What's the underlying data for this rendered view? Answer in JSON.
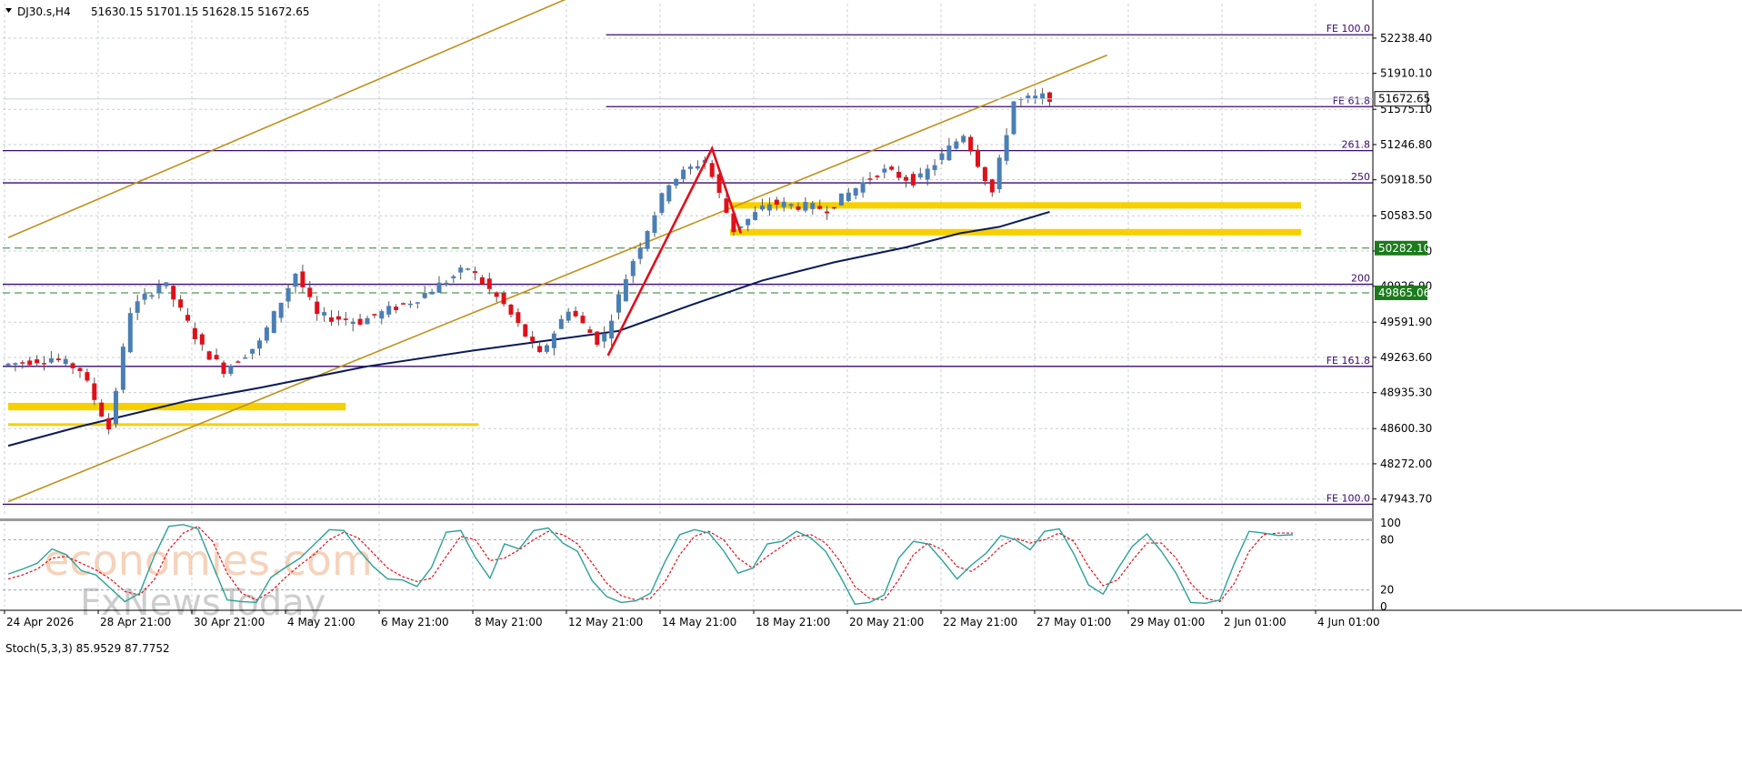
{
  "header": {
    "symbol": "DJ30.s,H4",
    "ohlc": "51630.15 51701.15 51628.15 51672.65",
    "toggle_icon": "triangle-down-icon"
  },
  "indicator": {
    "label": "Stoch(5,3,3) 85.9529 87.7752",
    "levels": [
      "100",
      "80",
      "20",
      "0"
    ]
  },
  "watermark": {
    "line1": "economies.com",
    "line2": "FxNewsToday"
  },
  "colors": {
    "bull": "#4a7fb5",
    "bear": "#e0101a",
    "grid": "#c8d0d8",
    "fib": "#3b0a6b",
    "channel": "#c0901a",
    "ma": "#0a1a5a",
    "zone": "#f7d000",
    "dash_green": "#2e7d32",
    "zigzag": "#e0101a",
    "stoch_main": "#2aa198",
    "stoch_signal": "#e0101a"
  },
  "chart_data": {
    "type": "candlestick",
    "symbol": "DJ30.s",
    "timeframe": "H4",
    "ylim": [
      47780,
      52560
    ],
    "y_ticks": [
      "52238.40",
      "51910.10",
      "51575.10",
      "51246.80",
      "50918.50",
      "50583.50",
      "50255.20",
      "49926.90",
      "49591.90",
      "49263.60",
      "48935.30",
      "48600.30",
      "48272.00",
      "47943.70"
    ],
    "x_ticks": [
      "24 Apr 2026",
      "28 Apr 21:00",
      "30 Apr 21:00",
      "4 May 21:00",
      "6 May 21:00",
      "8 May 21:00",
      "12 May 21:00",
      "14 May 21:00",
      "18 May 21:00",
      "20 May 21:00",
      "22 May 21:00",
      "27 May 01:00",
      "29 May 01:00",
      "2 Jun 01:00",
      "4 Jun 01:00"
    ],
    "current_price": "51672.65",
    "price_labels": [
      {
        "text": "50282.10",
        "value": 50282.1
      },
      {
        "text": "49865.06",
        "value": 49865.06
      }
    ],
    "horizontal_levels": [
      {
        "label": "FE 100.0",
        "value": 52270,
        "from_bar": 168
      },
      {
        "label": "FE 61.8",
        "value": 51600,
        "from_bar": 168
      },
      {
        "label": "261.8",
        "value": 51190,
        "from_bar": 0
      },
      {
        "label": "250",
        "value": 50890,
        "from_bar": 0
      },
      {
        "label": "200",
        "value": 49945,
        "from_bar": 0
      },
      {
        "label": "FE 161.8",
        "value": 49180,
        "from_bar": 0
      },
      {
        "label": "FE 100.0",
        "value": 47895,
        "from_bar": 0
      }
    ],
    "dashed_levels": [
      50282.1,
      49865.06
    ],
    "zones": [
      {
        "from_bar": 0,
        "to_bar": 94,
        "low": 48770,
        "high": 48840
      },
      {
        "from_bar": 0,
        "to_bar": 131,
        "low": 48625,
        "high": 48650
      },
      {
        "from_bar": 201,
        "to_bar": 360,
        "low": 50650,
        "high": 50710
      },
      {
        "from_bar": 201,
        "to_bar": 360,
        "low": 50400,
        "high": 50460
      }
    ],
    "channel_lines": [
      {
        "from": [
          0,
          50380
        ],
        "to": [
          158,
          52640
        ]
      },
      {
        "from": [
          0,
          47920
        ],
        "to": [
          306,
          52080
        ]
      }
    ],
    "zigzag": [
      [
        167,
        49280
      ],
      [
        196,
        51210
      ],
      [
        204,
        50420
      ]
    ],
    "moving_average": [
      [
        0,
        48440
      ],
      [
        20,
        48620
      ],
      [
        50,
        48860
      ],
      [
        70,
        48980
      ],
      [
        100,
        49180
      ],
      [
        130,
        49330
      ],
      [
        150,
        49420
      ],
      [
        170,
        49510
      ],
      [
        190,
        49750
      ],
      [
        210,
        49980
      ],
      [
        230,
        50150
      ],
      [
        250,
        50290
      ],
      [
        265,
        50420
      ],
      [
        276,
        50480
      ],
      [
        290,
        50620
      ]
    ],
    "stochastic": {
      "ylim": [
        0,
        100
      ],
      "main": [
        39,
        45,
        52,
        69,
        62,
        43,
        38,
        22,
        6,
        16,
        60,
        96,
        98,
        93,
        50,
        8,
        6,
        5,
        35,
        47,
        58,
        75,
        92,
        91,
        68,
        48,
        33,
        32,
        24,
        47,
        89,
        91,
        59,
        34,
        75,
        69,
        91,
        94,
        76,
        66,
        31,
        12,
        5,
        7,
        16,
        54,
        86,
        92,
        88,
        67,
        40,
        46,
        75,
        78,
        90,
        82,
        66,
        36,
        3,
        5,
        14,
        58,
        78,
        75,
        55,
        33,
        50,
        64,
        85,
        80,
        68,
        90,
        93,
        63,
        26,
        15,
        45,
        72,
        87,
        66,
        40,
        5,
        4,
        8,
        52,
        90,
        88,
        85,
        86
      ],
      "signal": [
        33,
        38,
        45,
        58,
        60,
        52,
        44,
        33,
        18,
        14,
        32,
        68,
        88,
        96,
        78,
        40,
        16,
        8,
        18,
        35,
        50,
        63,
        80,
        89,
        82,
        64,
        46,
        36,
        30,
        34,
        60,
        84,
        80,
        55,
        58,
        68,
        80,
        90,
        86,
        75,
        52,
        28,
        13,
        8,
        10,
        30,
        62,
        84,
        90,
        80,
        58,
        46,
        60,
        72,
        84,
        86,
        76,
        54,
        24,
        10,
        8,
        32,
        62,
        76,
        68,
        48,
        42,
        55,
        72,
        82,
        76,
        80,
        88,
        78,
        48,
        25,
        32,
        55,
        76,
        76,
        58,
        28,
        10,
        6,
        28,
        66,
        86,
        88,
        88
      ]
    }
  }
}
